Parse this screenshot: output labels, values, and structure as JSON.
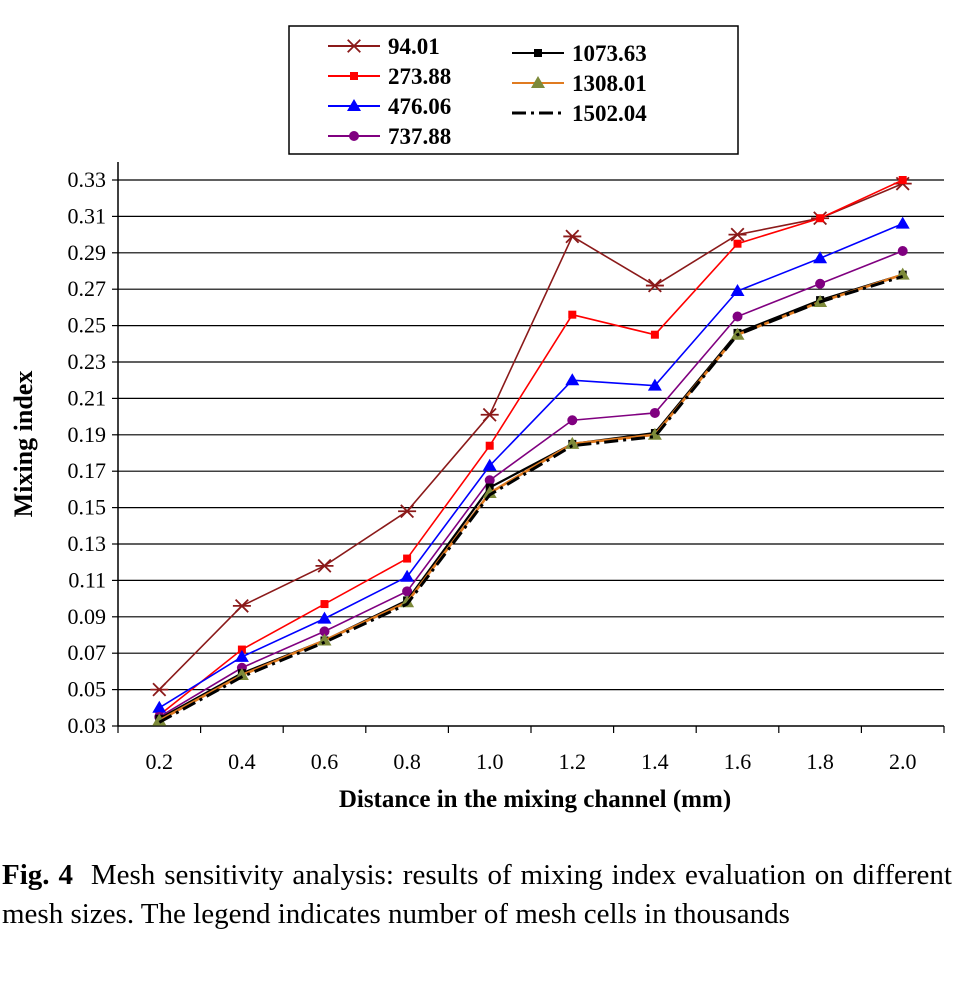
{
  "chart_data": {
    "type": "line",
    "xlabel": "Distance in the mixing channel (mm)",
    "ylabel": "Mixing index",
    "x": [
      "0.2",
      "0.4",
      "0.6",
      "0.8",
      "1.0",
      "1.2",
      "1.4",
      "1.6",
      "1.8",
      "2.0"
    ],
    "yticks": [
      "0.03",
      "0.05",
      "0.07",
      "0.09",
      "0.11",
      "0.13",
      "0.15",
      "0.17",
      "0.19",
      "0.21",
      "0.23",
      "0.25",
      "0.27",
      "0.29",
      "0.31",
      "0.33"
    ],
    "ylim": [
      0.03,
      0.33
    ],
    "grid": "horizontal",
    "legend_position": "top",
    "series": [
      {
        "name": "94.01",
        "color": "#8b1a1a",
        "marker": "star",
        "dash": "solid",
        "values": [
          0.05,
          0.096,
          0.118,
          0.148,
          0.201,
          0.299,
          0.272,
          0.3,
          0.309,
          0.328
        ]
      },
      {
        "name": "273.88",
        "color": "#ff0000",
        "marker": "square",
        "dash": "solid",
        "values": [
          0.036,
          0.072,
          0.097,
          0.122,
          0.184,
          0.256,
          0.245,
          0.295,
          0.309,
          0.33
        ]
      },
      {
        "name": "476.06",
        "color": "#0000ff",
        "marker": "triangle",
        "dash": "solid",
        "values": [
          0.04,
          0.068,
          0.089,
          0.112,
          0.173,
          0.22,
          0.217,
          0.269,
          0.287,
          0.306
        ]
      },
      {
        "name": "737.88",
        "color": "#800080",
        "marker": "circle",
        "dash": "solid",
        "values": [
          0.035,
          0.062,
          0.082,
          0.104,
          0.165,
          0.198,
          0.202,
          0.255,
          0.273,
          0.291
        ]
      },
      {
        "name": "1073.63",
        "color": "#000000",
        "marker": "square",
        "dash": "solid",
        "values": [
          0.034,
          0.059,
          0.077,
          0.099,
          0.161,
          0.185,
          0.191,
          0.246,
          0.264,
          0.278
        ]
      },
      {
        "name": "1308.01",
        "color": "#e07b20",
        "marker": "triangle",
        "marker_color": "#7d8a3a",
        "dash": "solid",
        "values": [
          0.033,
          0.058,
          0.077,
          0.098,
          0.158,
          0.185,
          0.19,
          0.245,
          0.263,
          0.278
        ]
      },
      {
        "name": "1502.04",
        "color": "#000000",
        "marker": "none",
        "dash": "dashdot",
        "values": [
          0.032,
          0.057,
          0.076,
          0.097,
          0.157,
          0.184,
          0.189,
          0.245,
          0.263,
          0.277
        ]
      }
    ]
  },
  "caption": {
    "label": "Fig. 4",
    "text": "Mesh sensitivity analysis: results of mixing index evaluation on different mesh sizes. The legend indicates number of mesh cells in thousands"
  }
}
